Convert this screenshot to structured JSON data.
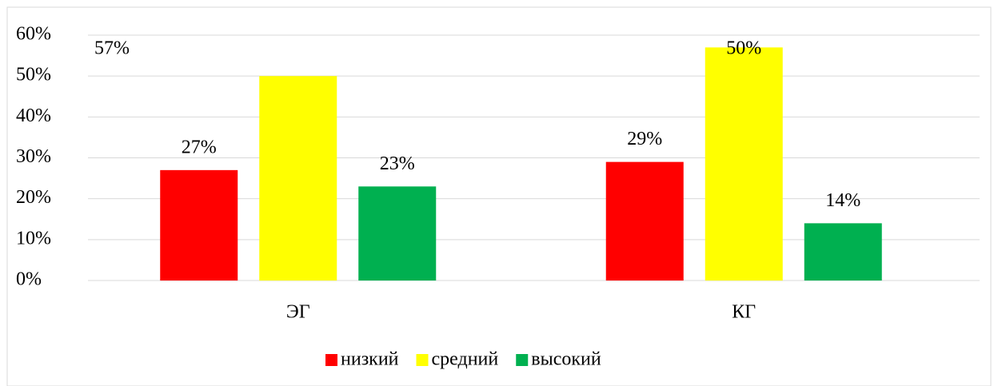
{
  "chart_data": {
    "type": "bar",
    "categories": [
      "ЭГ",
      "КГ"
    ],
    "series": [
      {
        "name": "низкий",
        "color": "#ff0000",
        "values": [
          27,
          29
        ],
        "value_labels": [
          "27%",
          "29%"
        ]
      },
      {
        "name": "средний",
        "color": "#ffff00",
        "values": [
          50,
          57
        ]
      },
      {
        "name": "высокий",
        "color": "#00b050",
        "values": [
          23,
          14
        ],
        "value_labels": [
          "23%",
          "14%"
        ]
      }
    ],
    "annotations": [
      "57%",
      "50%"
    ],
    "ylim": [
      0,
      60
    ],
    "yticks": [
      {
        "value": 0,
        "label": "0%"
      },
      {
        "value": 10,
        "label": "10%"
      },
      {
        "value": 20,
        "label": "20%"
      },
      {
        "value": 30,
        "label": "30%"
      },
      {
        "value": 40,
        "label": "40%"
      },
      {
        "value": 50,
        "label": "50%"
      },
      {
        "value": 60,
        "label": "60%"
      }
    ],
    "grid": true,
    "legend": "bottom"
  }
}
